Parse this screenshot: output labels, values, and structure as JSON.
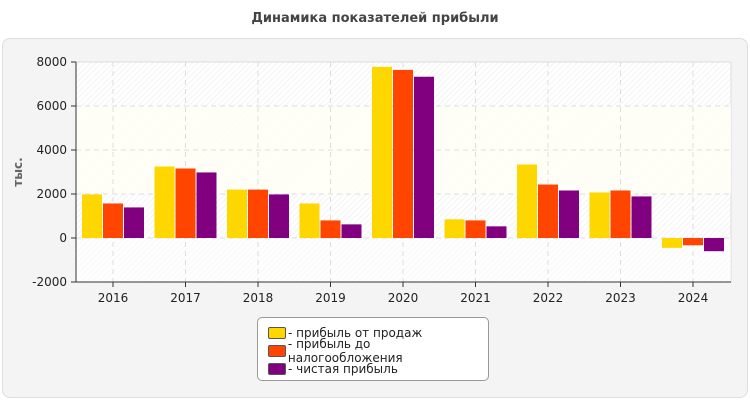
{
  "chart_data": {
    "type": "bar",
    "title": "Динамика показателей прибыли",
    "ylabel": "тыс.",
    "xlabel": "",
    "ylim": [
      -2000,
      8000
    ],
    "yticks": [
      -2000,
      0,
      2000,
      4000,
      6000,
      8000
    ],
    "grid": true,
    "legend_position": "bottom",
    "categories": [
      "2016",
      "2017",
      "2018",
      "2019",
      "2020",
      "2021",
      "2022",
      "2023",
      "2024"
    ],
    "series": [
      {
        "name": "- прибыль от продаж",
        "color": "#ffd700",
        "values": [
          1980,
          3250,
          2200,
          1570,
          7780,
          850,
          3340,
          2070,
          -450
        ]
      },
      {
        "name": "- прибыль до налогообложения",
        "color": "#ff4500",
        "values": [
          1570,
          3160,
          2200,
          800,
          7640,
          800,
          2430,
          2160,
          -330
        ]
      },
      {
        "name": "- чистая прибыль",
        "color": "#800080",
        "values": [
          1390,
          2980,
          1980,
          620,
          7330,
          530,
          2160,
          1890,
          -600
        ]
      }
    ]
  }
}
